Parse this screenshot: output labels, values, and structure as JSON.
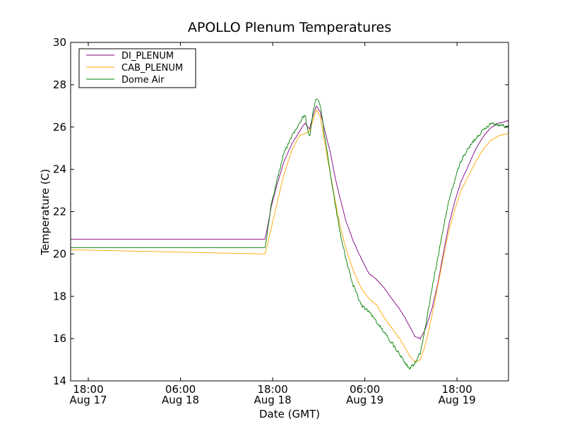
{
  "chart_data": {
    "type": "line",
    "title": "APOLLO Plenum Temperatures",
    "xlabel": "Date (GMT)",
    "ylabel": "Temperature (C)",
    "x_unit": "hours since 2012-08-17 00:00 GMT",
    "xlim": [
      15.7,
      72.7
    ],
    "ylim": [
      14,
      30
    ],
    "grid": false,
    "legend_position": "top-left",
    "x_ticks": [
      {
        "value": 18,
        "line1": "18:00",
        "line2": "Aug 17"
      },
      {
        "value": 30,
        "line1": "06:00",
        "line2": "Aug 18"
      },
      {
        "value": 42,
        "line1": "18:00",
        "line2": "Aug 18"
      },
      {
        "value": 54,
        "line1": "06:00",
        "line2": "Aug 19"
      },
      {
        "value": 66,
        "line1": "18:00",
        "line2": "Aug 19"
      }
    ],
    "y_ticks": [
      14,
      16,
      18,
      20,
      22,
      24,
      26,
      28,
      30
    ],
    "series": [
      {
        "name": "DI_PLENUM",
        "color": "#800080",
        "x": [
          15.7,
          41.0,
          41.3,
          41.8,
          42.5,
          43.5,
          44.5,
          45.5,
          46.2,
          46.8,
          47.3,
          47.7,
          48.2,
          48.8,
          49.5,
          50.2,
          50.8,
          51.5,
          52.5,
          53.5,
          54.5,
          55.5,
          56.5,
          57.5,
          58.5,
          59.2,
          59.8,
          60.5,
          61.2,
          61.7,
          62.2,
          62.8,
          63.5,
          64.2,
          65.0,
          65.8,
          66.5,
          67.5,
          68.5,
          69.5,
          70.5,
          71.5,
          72.7
        ],
        "values": [
          20.7,
          20.7,
          21.2,
          22.2,
          23.2,
          24.4,
          25.2,
          25.8,
          26.2,
          25.9,
          26.6,
          27.0,
          26.7,
          25.8,
          24.8,
          23.5,
          22.6,
          21.6,
          20.6,
          19.8,
          19.1,
          18.8,
          18.4,
          17.9,
          17.4,
          17.0,
          16.6,
          16.1,
          16.0,
          16.3,
          16.8,
          17.5,
          18.6,
          20.0,
          21.5,
          22.6,
          23.4,
          24.2,
          25.0,
          25.6,
          26.0,
          26.2,
          26.3
        ]
      },
      {
        "name": "CAB_PLENUM",
        "color": "#ffa500",
        "x": [
          15.7,
          41.0,
          41.3,
          41.8,
          42.5,
          43.5,
          44.5,
          45.5,
          46.2,
          46.8,
          47.3,
          47.7,
          48.2,
          48.8,
          49.5,
          50.2,
          50.8,
          51.5,
          52.5,
          53.5,
          54.5,
          55.5,
          56.5,
          57.5,
          58.5,
          59.2,
          59.8,
          60.5,
          61.2,
          61.7,
          62.2,
          62.8,
          63.5,
          64.2,
          65.0,
          65.8,
          66.5,
          67.5,
          68.5,
          69.5,
          70.5,
          71.5,
          72.7
        ],
        "values": [
          20.2,
          20.0,
          20.4,
          21.2,
          22.3,
          23.8,
          24.9,
          25.6,
          25.7,
          25.8,
          26.4,
          26.8,
          26.5,
          25.2,
          23.8,
          22.4,
          21.3,
          20.3,
          19.2,
          18.4,
          17.9,
          17.6,
          17.0,
          16.5,
          16.0,
          15.6,
          15.2,
          14.9,
          15.0,
          15.5,
          16.2,
          17.2,
          18.5,
          19.8,
          21.2,
          22.2,
          23.0,
          23.7,
          24.4,
          25.0,
          25.4,
          25.6,
          25.7
        ]
      },
      {
        "name": "Dome Air",
        "color": "#008000",
        "x": [
          15.7,
          41.0,
          41.3,
          41.8,
          42.5,
          43.5,
          44.5,
          45.5,
          46.2,
          46.8,
          47.3,
          47.7,
          48.2,
          48.8,
          49.5,
          50.2,
          50.8,
          51.5,
          52.5,
          53.5,
          54.5,
          55.5,
          56.5,
          57.5,
          58.5,
          59.2,
          59.8,
          60.5,
          61.2,
          61.7,
          62.2,
          62.8,
          63.5,
          64.2,
          65.0,
          65.8,
          66.5,
          67.5,
          68.5,
          69.5,
          70.5,
          71.5,
          72.7
        ],
        "values": [
          20.3,
          20.3,
          21.0,
          22.3,
          23.4,
          24.8,
          25.6,
          26.2,
          26.6,
          25.5,
          26.8,
          27.4,
          27.0,
          25.5,
          23.8,
          22.2,
          21.0,
          19.8,
          18.5,
          17.6,
          17.3,
          16.8,
          16.3,
          15.8,
          15.3,
          14.9,
          14.6,
          14.8,
          15.3,
          16.2,
          17.2,
          18.5,
          19.8,
          21.2,
          22.6,
          23.6,
          24.4,
          25.0,
          25.5,
          25.9,
          26.2,
          26.1,
          26.0
        ]
      }
    ]
  }
}
